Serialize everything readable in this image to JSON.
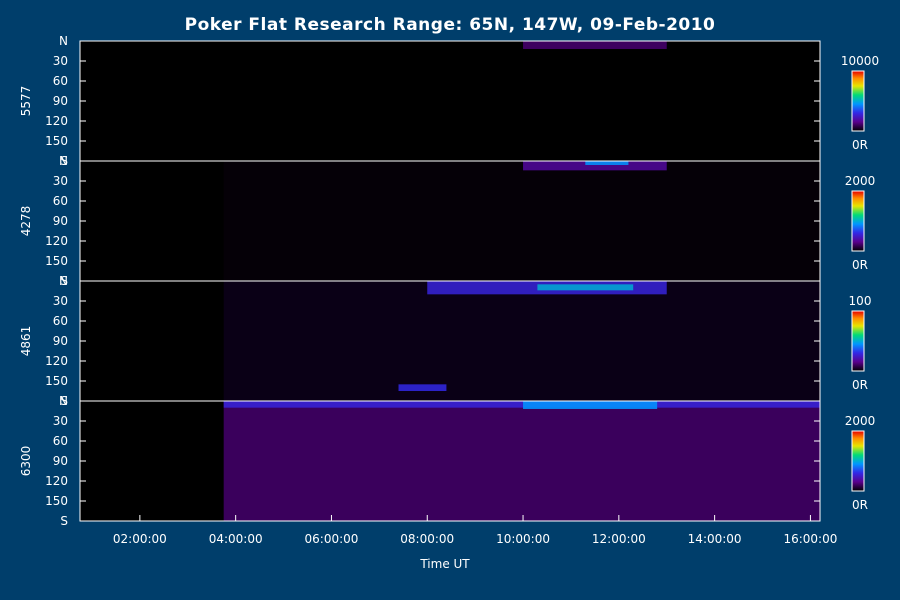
{
  "chart_data": {
    "type": "heatmap",
    "title": "Poker Flat Research Range: 65N, 147W, 09-Feb-2010",
    "xlabel": "Time UT",
    "x_ticks": [
      "02:00:00",
      "04:00:00",
      "06:00:00",
      "08:00:00",
      "10:00:00",
      "12:00:00",
      "14:00:00",
      "16:00:00"
    ],
    "x_tick_hours": [
      2,
      4,
      6,
      8,
      10,
      12,
      14,
      16
    ],
    "xlim_hours": [
      0.75,
      16.2
    ],
    "y_ticks": [
      "N",
      "30",
      "60",
      "90",
      "120",
      "150",
      "S"
    ],
    "y_tick_values": [
      0,
      30,
      60,
      90,
      120,
      150,
      180
    ],
    "ylim": [
      0,
      180
    ],
    "colormap": "rainbow (black-purple-blue-cyan-green-yellow-orange-red)",
    "data_start_hour": 3.75,
    "panels": [
      {
        "name": "5577",
        "cbar_max": "10000",
        "cbar_min": "0R",
        "background": "#000000",
        "features": [
          {
            "t0": 10.0,
            "t1": 13.0,
            "y0": 0,
            "y1": 12,
            "level": 0.12
          }
        ]
      },
      {
        "name": "4278",
        "cbar_max": "2000",
        "cbar_min": "0R",
        "background": "#050007",
        "features": [
          {
            "t0": 10.0,
            "t1": 13.0,
            "y0": 0,
            "y1": 14,
            "level": 0.18
          },
          {
            "t0": 11.3,
            "t1": 12.2,
            "y0": 0,
            "y1": 6,
            "level": 0.45
          }
        ]
      },
      {
        "name": "4861",
        "cbar_max": "100",
        "cbar_min": "0R",
        "background": "#0a0016",
        "features": [
          {
            "t0": 8.0,
            "t1": 13.0,
            "y0": 0,
            "y1": 20,
            "level": 0.28
          },
          {
            "t0": 10.3,
            "t1": 12.3,
            "y0": 5,
            "y1": 14,
            "level": 0.5
          },
          {
            "t0": 7.4,
            "t1": 8.4,
            "y0": 155,
            "y1": 165,
            "level": 0.3
          }
        ]
      },
      {
        "name": "6300",
        "cbar_max": "2000",
        "cbar_min": "0R",
        "background": "#3a005c",
        "features": [
          {
            "t0": 3.75,
            "t1": 16.2,
            "y0": 0,
            "y1": 10,
            "level": 0.28
          },
          {
            "t0": 10.0,
            "t1": 12.8,
            "y0": 0,
            "y1": 12,
            "level": 0.45
          }
        ]
      }
    ]
  }
}
